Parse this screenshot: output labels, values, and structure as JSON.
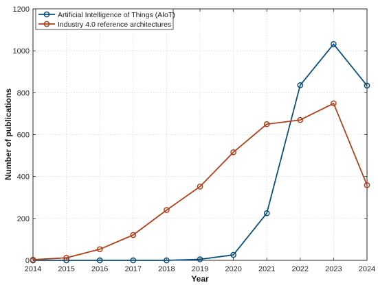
{
  "chart_data": {
    "type": "line",
    "xlabel": "Year",
    "ylabel": "Number of publications",
    "x": [
      2014,
      2015,
      2016,
      2017,
      2018,
      2019,
      2020,
      2021,
      2022,
      2023,
      2024
    ],
    "xlim": [
      2014,
      2024
    ],
    "ylim": [
      0,
      1200
    ],
    "xticks": [
      "2014",
      "2015",
      "2016",
      "2017",
      "2018",
      "2019",
      "2020",
      "2021",
      "2022",
      "2023",
      "2024"
    ],
    "yticks": [
      "0",
      "200",
      "400",
      "600",
      "800",
      "1000",
      "1200"
    ],
    "grid": true,
    "legend_position": "top-left",
    "series": [
      {
        "name": "Artificial Intelligence of Things (AIoT)",
        "color": "#0b4f7c",
        "values": [
          0,
          0,
          0,
          0,
          0,
          5,
          26,
          225,
          836,
          1032,
          834
        ]
      },
      {
        "name": "Industry 4.0 reference architectures",
        "color": "#b0401a",
        "values": [
          3,
          12,
          53,
          121,
          240,
          352,
          516,
          650,
          670,
          749,
          359
        ]
      }
    ]
  }
}
